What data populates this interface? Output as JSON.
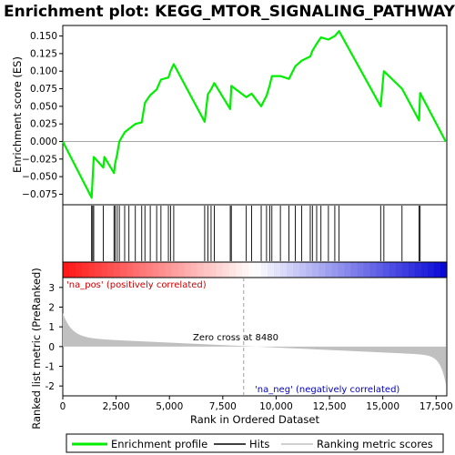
{
  "chart_data": {
    "type": "line",
    "title": "Enrichment plot: KEGG_MTOR_SIGNALING_PATHWAY",
    "xlabel": "Rank in Ordered Dataset",
    "ylabel_top": "Enrichment score (ES)",
    "ylabel_bottom": "Ranked list metric (PreRanked)",
    "xlim": [
      0,
      18000
    ],
    "ylim_es": [
      -0.09,
      0.165
    ],
    "ylim_metric": [
      -2.5,
      3.5
    ],
    "x_ticks": [
      0,
      2500,
      5000,
      7500,
      10000,
      12500,
      15000,
      17500
    ],
    "x_tick_labels": [
      "0",
      "2,500",
      "5,000",
      "7,500",
      "10,000",
      "12,500",
      "15,000",
      "17,500"
    ],
    "es_ticks": [
      -0.075,
      -0.05,
      -0.025,
      0.0,
      0.025,
      0.05,
      0.075,
      0.1,
      0.125,
      0.15
    ],
    "es_tick_labels": [
      "−0.075",
      "−0.050",
      "−0.025",
      "0.000",
      "0.025",
      "0.050",
      "0.075",
      "0.100",
      "0.125",
      "0.150"
    ],
    "metric_ticks": [
      -2,
      -1,
      0,
      1,
      2,
      3
    ],
    "metric_tick_labels": [
      "-2",
      "-1",
      "0",
      "1",
      "2",
      "3"
    ],
    "hits": [
      1350,
      1400,
      1450,
      1900,
      2400,
      2450,
      2550,
      2650,
      2900,
      3100,
      3400,
      3700,
      3850,
      4100,
      4400,
      4600,
      4950,
      5050,
      5200,
      6650,
      6800,
      6950,
      7100,
      7850,
      7900,
      8600,
      8850,
      9300,
      9550,
      9700,
      9800,
      10200,
      10600,
      10900,
      11200,
      11600,
      11700,
      11900,
      12100,
      12450,
      12750,
      12950,
      14900,
      15050,
      15900,
      16700,
      16750
    ],
    "es_profile": [
      [
        0,
        0.0
      ],
      [
        1350,
        -0.08
      ],
      [
        1400,
        -0.052
      ],
      [
        1450,
        -0.022
      ],
      [
        1900,
        -0.037
      ],
      [
        1950,
        -0.022
      ],
      [
        2400,
        -0.045
      ],
      [
        2450,
        -0.032
      ],
      [
        2550,
        -0.018
      ],
      [
        2650,
        0.0
      ],
      [
        2900,
        0.013
      ],
      [
        3100,
        0.018
      ],
      [
        3400,
        0.025
      ],
      [
        3700,
        0.027
      ],
      [
        3850,
        0.055
      ],
      [
        4100,
        0.066
      ],
      [
        4400,
        0.074
      ],
      [
        4600,
        0.088
      ],
      [
        4950,
        0.091
      ],
      [
        5050,
        0.1
      ],
      [
        5200,
        0.11
      ],
      [
        6650,
        0.028
      ],
      [
        6800,
        0.067
      ],
      [
        6950,
        0.074
      ],
      [
        7100,
        0.083
      ],
      [
        7850,
        0.046
      ],
      [
        7900,
        0.079
      ],
      [
        8600,
        0.063
      ],
      [
        8850,
        0.068
      ],
      [
        9300,
        0.05
      ],
      [
        9550,
        0.065
      ],
      [
        9700,
        0.08
      ],
      [
        9800,
        0.093
      ],
      [
        10200,
        0.093
      ],
      [
        10600,
        0.089
      ],
      [
        10900,
        0.107
      ],
      [
        11200,
        0.115
      ],
      [
        11600,
        0.121
      ],
      [
        11700,
        0.129
      ],
      [
        11900,
        0.139
      ],
      [
        12100,
        0.148
      ],
      [
        12450,
        0.145
      ],
      [
        12750,
        0.15
      ],
      [
        12950,
        0.157
      ],
      [
        14900,
        0.05
      ],
      [
        15050,
        0.1
      ],
      [
        15900,
        0.075
      ],
      [
        16700,
        0.03
      ],
      [
        16750,
        0.069
      ],
      [
        17950,
        0.0
      ]
    ],
    "zero_cross_rank": 8480,
    "zero_cross_label": "Zero cross at 8480",
    "pos_label": "'na_pos' (positively correlated)",
    "neg_label": "'na_neg' (negatively correlated)",
    "legend": [
      "Enrichment profile",
      "Hits",
      "Ranking metric scores"
    ],
    "grid": false,
    "colors": {
      "profile": "#00ee00",
      "hits": "#000000",
      "metric_fill": "#c0c0c0",
      "pos_text": "#cc0000",
      "neg_text": "#0000cc",
      "zero_line": "#888888"
    }
  }
}
